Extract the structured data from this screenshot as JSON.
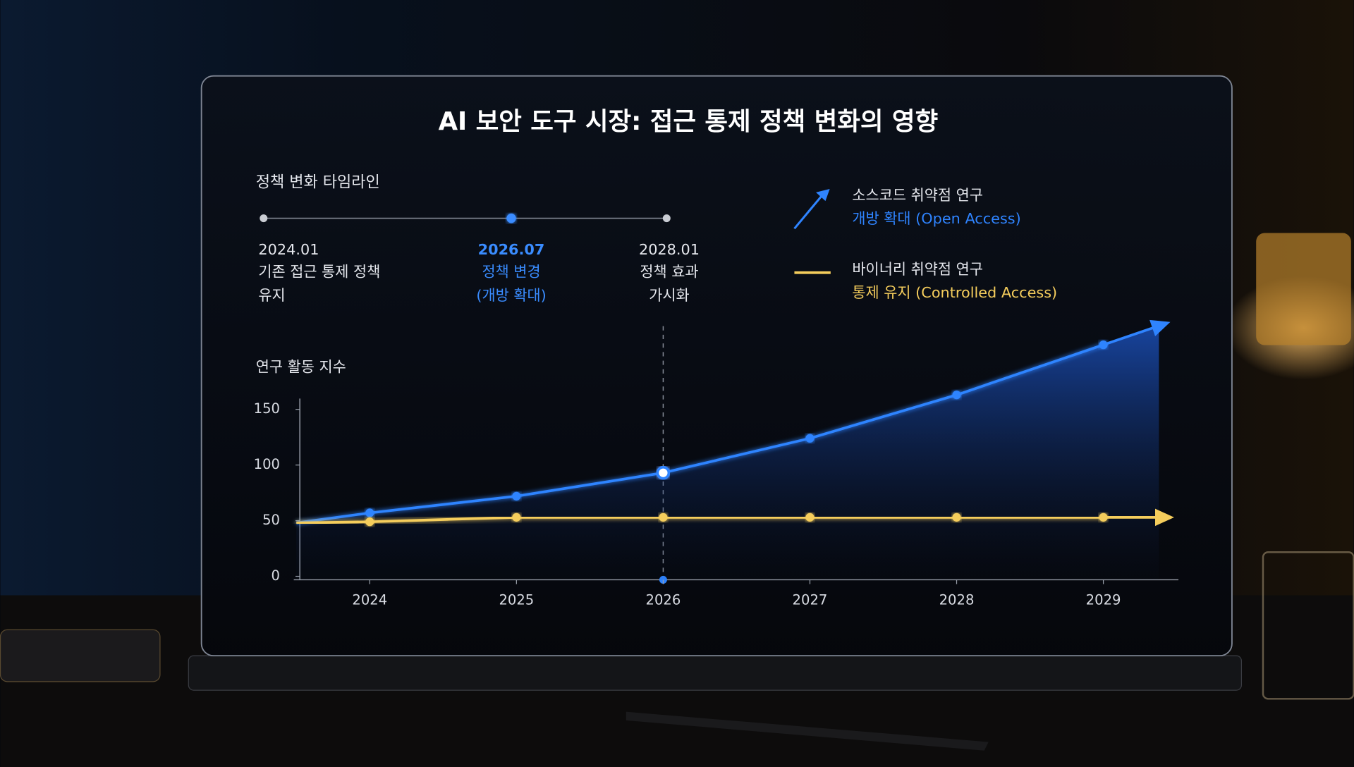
{
  "chart_data": {
    "type": "line",
    "title": "AI 보안 도구 시장: 접근 통제 정책 변화의 영향",
    "timeline_title": "정책 변화 타임라인",
    "timeline": [
      {
        "date": "2024.01",
        "lines": [
          "기존 접근 통제 정책",
          "유지"
        ]
      },
      {
        "date": "2026.07",
        "lines": [
          "정책 변경",
          "(개방 확대)"
        ],
        "highlight": true
      },
      {
        "date": "2028.01",
        "lines": [
          "정책 효과",
          "가시화"
        ]
      }
    ],
    "y_label": "연구 활동 지수",
    "x": [
      2023.5,
      2024,
      2025,
      2026,
      2027,
      2028,
      2029
    ],
    "xlim": [
      2023.5,
      2029.5
    ],
    "xticks": [
      2024,
      2025,
      2026,
      2027,
      2028,
      2029
    ],
    "ylim": [
      0,
      160
    ],
    "yticks": [
      0,
      50,
      100,
      150
    ],
    "highlight_x": 2026,
    "series": [
      {
        "name": "소스코드 취약점 연구",
        "subtitle": "개방 확대 (Open Access)",
        "color": "#2f84ff",
        "area": true,
        "values": [
          48,
          57,
          72,
          93,
          124,
          163,
          208
        ]
      },
      {
        "name": "바이너리 취약점 연구",
        "subtitle": "통제 유지 (Controlled Access)",
        "color": "#f5cd5c",
        "area": false,
        "values": [
          48,
          49,
          53,
          53,
          53,
          53,
          53
        ]
      }
    ]
  }
}
